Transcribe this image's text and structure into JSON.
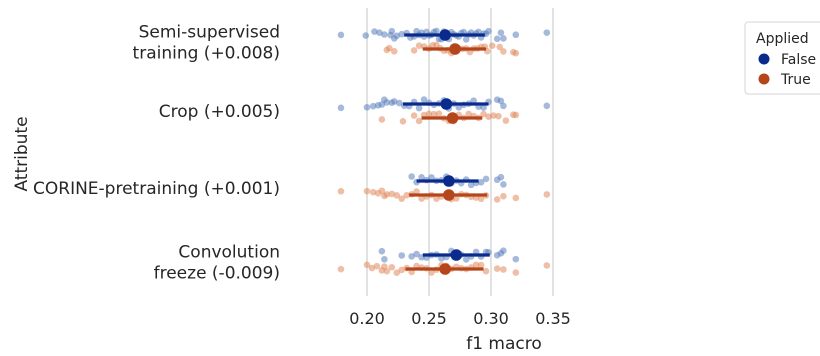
{
  "chart_data": {
    "type": "scatter",
    "xlabel": "f1 macro",
    "ylabel": "Attribute",
    "xlim": [
      0.18,
      0.36
    ],
    "xticks": [
      0.2,
      0.25,
      0.3,
      0.35
    ],
    "xtick_labels": [
      "0.20",
      "0.25",
      "0.30",
      "0.35"
    ],
    "grid": "vertical",
    "legend": {
      "title": "Applied",
      "placement": "top-right",
      "entries": [
        {
          "label": "False",
          "color": "#0a2b8c"
        },
        {
          "label": "True",
          "color": "#b5461b"
        }
      ]
    },
    "categories": [
      {
        "label_lines": [
          "Semi-supervised",
          "training (+0.008)"
        ],
        "false": {
          "mean": 0.263,
          "ci": [
            0.23,
            0.295
          ],
          "points": [
            0.179,
            0.199,
            0.206,
            0.21,
            0.214,
            0.219,
            0.22,
            0.222,
            0.224,
            0.228,
            0.232,
            0.235,
            0.238,
            0.24,
            0.242,
            0.244,
            0.246,
            0.248,
            0.25,
            0.252,
            0.254,
            0.256,
            0.258,
            0.26,
            0.262,
            0.264,
            0.266,
            0.268,
            0.27,
            0.272,
            0.274,
            0.276,
            0.278,
            0.28,
            0.282,
            0.284,
            0.286,
            0.288,
            0.29,
            0.292,
            0.294,
            0.296,
            0.298,
            0.305,
            0.308,
            0.31,
            0.32,
            0.345
          ]
        },
        "true": {
          "mean": 0.271,
          "ci": [
            0.245,
            0.296
          ],
          "points": [
            0.216,
            0.218,
            0.222,
            0.238,
            0.242,
            0.246,
            0.25,
            0.253,
            0.256,
            0.259,
            0.262,
            0.265,
            0.268,
            0.271,
            0.274,
            0.277,
            0.28,
            0.283,
            0.286,
            0.289,
            0.292,
            0.295,
            0.297,
            0.301,
            0.307,
            0.31,
            0.318,
            0.32
          ]
        }
      },
      {
        "label_lines": [
          "Crop (+0.005)"
        ],
        "false": {
          "mean": 0.264,
          "ci": [
            0.229,
            0.298
          ],
          "points": [
            0.179,
            0.2,
            0.205,
            0.209,
            0.212,
            0.214,
            0.216,
            0.22,
            0.222,
            0.226,
            0.23,
            0.234,
            0.238,
            0.242,
            0.246,
            0.25,
            0.254,
            0.258,
            0.262,
            0.266,
            0.27,
            0.274,
            0.278,
            0.282,
            0.286,
            0.29,
            0.294,
            0.298,
            0.305,
            0.308,
            0.31,
            0.345
          ]
        },
        "true": {
          "mean": 0.269,
          "ci": [
            0.244,
            0.293
          ],
          "points": [
            0.212,
            0.229,
            0.238,
            0.242,
            0.246,
            0.25,
            0.254,
            0.258,
            0.262,
            0.266,
            0.27,
            0.274,
            0.278,
            0.282,
            0.286,
            0.29,
            0.294,
            0.298,
            0.302,
            0.306,
            0.312,
            0.318,
            0.32
          ]
        }
      },
      {
        "label_lines": [
          "CORINE-pretraining (+0.001)"
        ],
        "false": {
          "mean": 0.266,
          "ci": [
            0.24,
            0.29
          ],
          "points": [
            0.236,
            0.24,
            0.244,
            0.248,
            0.252,
            0.256,
            0.26,
            0.264,
            0.268,
            0.272,
            0.276,
            0.28,
            0.284,
            0.288,
            0.292,
            0.296,
            0.305,
            0.308,
            0.31
          ]
        },
        "true": {
          "mean": 0.266,
          "ci": [
            0.234,
            0.297
          ],
          "points": [
            0.179,
            0.2,
            0.205,
            0.209,
            0.212,
            0.214,
            0.216,
            0.22,
            0.224,
            0.228,
            0.232,
            0.236,
            0.24,
            0.244,
            0.248,
            0.252,
            0.256,
            0.26,
            0.264,
            0.268,
            0.272,
            0.276,
            0.28,
            0.284,
            0.288,
            0.292,
            0.296,
            0.305,
            0.31,
            0.32,
            0.345
          ]
        }
      },
      {
        "label_lines": [
          "Convolution",
          "freeze (-0.009)"
        ],
        "false": {
          "mean": 0.272,
          "ci": [
            0.245,
            0.299
          ],
          "points": [
            0.212,
            0.214,
            0.228,
            0.236,
            0.24,
            0.244,
            0.248,
            0.252,
            0.256,
            0.26,
            0.264,
            0.268,
            0.272,
            0.276,
            0.28,
            0.284,
            0.288,
            0.292,
            0.296,
            0.298,
            0.305,
            0.308,
            0.31,
            0.32
          ]
        },
        "true": {
          "mean": 0.263,
          "ci": [
            0.231,
            0.294
          ],
          "points": [
            0.179,
            0.2,
            0.204,
            0.208,
            0.212,
            0.214,
            0.216,
            0.22,
            0.224,
            0.228,
            0.232,
            0.236,
            0.24,
            0.244,
            0.248,
            0.252,
            0.256,
            0.26,
            0.264,
            0.268,
            0.272,
            0.276,
            0.28,
            0.284,
            0.288,
            0.292,
            0.296,
            0.305,
            0.31,
            0.32,
            0.345
          ]
        }
      }
    ]
  },
  "colors": {
    "false_dot": "#5b7fbd",
    "true_dot": "#e08a5c",
    "false_line": "#0a2b8c",
    "true_line": "#b5461b",
    "grid": "#cfcfcf",
    "text": "#262626"
  }
}
